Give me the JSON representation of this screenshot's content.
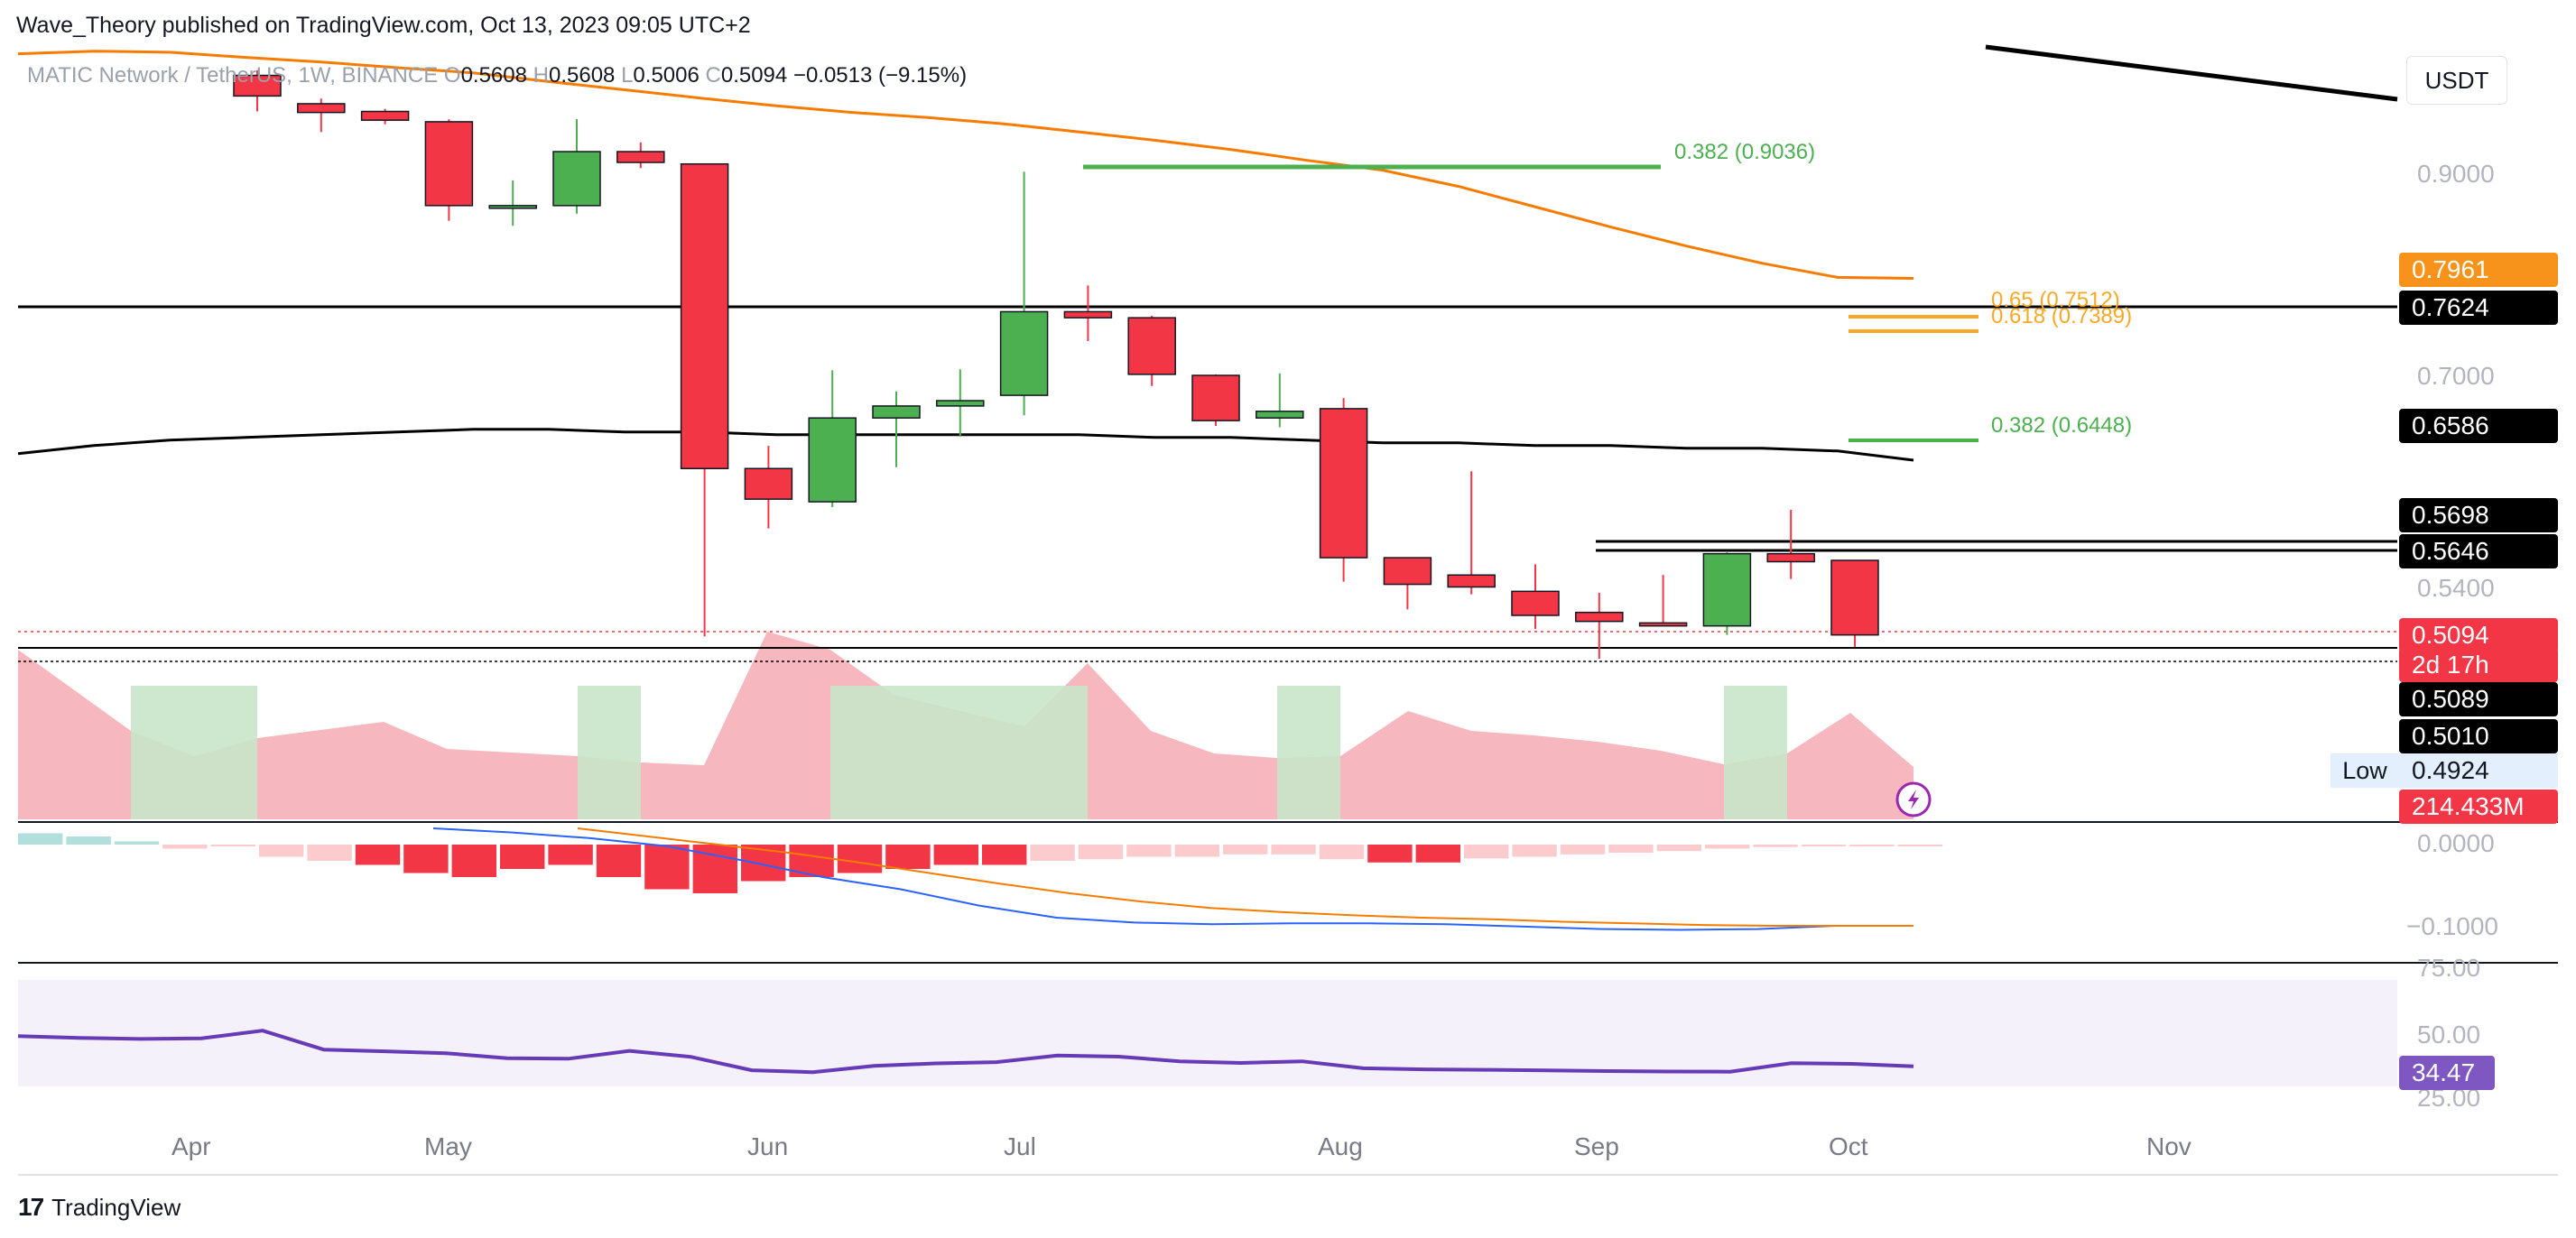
{
  "header": {
    "published": "Wave_Theory published on TradingView.com, Oct 13, 2023 09:05 UTC+2",
    "symbol": "MATIC Network / TetherUS, 1W, BINANCE",
    "o_label": "O",
    "o": "0.5608",
    "h_label": "H",
    "h": "0.5608",
    "l_label": "L",
    "l": "0.5006",
    "c_label": "C",
    "c": "0.5094",
    "chg": "−0.0513 (−9.15%)"
  },
  "currency_button": "USDT",
  "price_tags": {
    "ema_orange": "0.7961",
    "res_top": "0.7624",
    "ema_black": "0.6586",
    "res_a": "0.5698",
    "res_b": "0.5646",
    "last": "0.5094",
    "countdown": "2d 17h",
    "sup_a": "0.5089",
    "sup_b": "0.5010",
    "low_label": "Low",
    "low": "0.4924",
    "volume": "214.433M",
    "rsi": "34.47"
  },
  "fib_labels": {
    "f1": "0.382 (0.9036)",
    "f2a": "0.65 (0.7512)",
    "f2b": "0.618 (0.7389)",
    "f3": "0.382 (0.6448)"
  },
  "colors": {
    "up": "#4caf50",
    "down": "#f23645",
    "ema_orange": "#f57c00",
    "fib_green": "#4caf50",
    "fib_gold": "#f9a825",
    "rsi": "#673ab7",
    "macd_line": "#2962ff"
  },
  "brand": "TradingView",
  "chart_data": {
    "type": "candlestick",
    "pair": "MATIC/USDT",
    "timeframe": "1W",
    "y_axis_ticks": [
      "0.9000",
      "0.7000",
      "0.5400"
    ],
    "x_axis_ticks": [
      "Apr",
      "May",
      "Jun",
      "Jul",
      "Aug",
      "Sep",
      "Oct",
      "Nov"
    ],
    "candles": [
      {
        "o": 1.09,
        "h": 1.1,
        "l": 1.02,
        "c": 1.05
      },
      {
        "o": 1.035,
        "h": 1.045,
        "l": 0.98,
        "c": 1.018
      },
      {
        "o": 1.02,
        "h": 1.025,
        "l": 0.995,
        "c": 1.003
      },
      {
        "o": 1.0,
        "h": 1.005,
        "l": 0.853,
        "c": 0.868
      },
      {
        "o": 0.868,
        "h": 0.893,
        "l": 0.848,
        "c": 0.868
      },
      {
        "o": 0.868,
        "h": 1.005,
        "l": 0.86,
        "c": 0.942
      },
      {
        "o": 0.942,
        "h": 0.96,
        "l": 0.91,
        "c": 0.921
      },
      {
        "o": 0.918,
        "h": 0.918,
        "l": 0.508,
        "c": 0.63
      },
      {
        "o": 0.63,
        "h": 0.647,
        "l": 0.585,
        "c": 0.607
      },
      {
        "o": 0.605,
        "h": 0.705,
        "l": 0.601,
        "c": 0.668
      },
      {
        "o": 0.668,
        "h": 0.688,
        "l": 0.631,
        "c": 0.677
      },
      {
        "o": 0.677,
        "h": 0.706,
        "l": 0.654,
        "c": 0.681
      },
      {
        "o": 0.685,
        "h": 0.903,
        "l": 0.67,
        "c": 0.763
      },
      {
        "o": 0.763,
        "h": 0.789,
        "l": 0.734,
        "c": 0.757
      },
      {
        "o": 0.757,
        "h": 0.759,
        "l": 0.692,
        "c": 0.701
      },
      {
        "o": 0.7,
        "h": 0.701,
        "l": 0.662,
        "c": 0.666
      },
      {
        "o": 0.668,
        "h": 0.702,
        "l": 0.661,
        "c": 0.673
      },
      {
        "o": 0.675,
        "h": 0.683,
        "l": 0.545,
        "c": 0.563
      },
      {
        "o": 0.563,
        "h": 0.563,
        "l": 0.526,
        "c": 0.543
      },
      {
        "o": 0.55,
        "h": 0.628,
        "l": 0.536,
        "c": 0.541
      },
      {
        "o": 0.538,
        "h": 0.558,
        "l": 0.513,
        "c": 0.522
      },
      {
        "o": 0.524,
        "h": 0.537,
        "l": 0.493,
        "c": 0.518
      },
      {
        "o": 0.517,
        "h": 0.55,
        "l": 0.515,
        "c": 0.515
      },
      {
        "o": 0.515,
        "h": 0.567,
        "l": 0.509,
        "c": 0.566
      },
      {
        "o": 0.566,
        "h": 0.599,
        "l": 0.547,
        "c": 0.56
      },
      {
        "o": 0.561,
        "h": 0.561,
        "l": 0.501,
        "c": 0.509
      }
    ],
    "ema_orange": [
      1.132,
      1.137,
      1.135,
      1.125,
      1.116,
      1.105,
      1.095,
      1.078,
      1.062,
      1.046,
      1.031,
      1.018,
      1.008,
      0.996,
      0.98,
      0.964,
      0.946,
      0.925,
      0.906,
      0.887,
      0.867,
      0.847,
      0.828,
      0.811,
      0.797,
      0.796
    ],
    "ema_black": [
      0.661,
      0.664,
      0.666,
      0.667,
      0.668,
      0.669,
      0.67,
      0.67,
      0.669,
      0.669,
      0.668,
      0.668,
      0.668,
      0.668,
      0.668,
      0.667,
      0.667,
      0.666,
      0.665,
      0.665,
      0.664,
      0.664,
      0.663,
      0.663,
      0.662,
      0.6586
    ],
    "horizontal_levels": [
      0.7624,
      0.5698,
      0.5646,
      0.5089,
      0.501
    ],
    "fib_levels": [
      0.9036,
      0.7512,
      0.7389,
      0.6448
    ],
    "rsi_bounds": [
      25,
      75
    ],
    "rsi_ticks": [
      "75.00",
      "50.00",
      "25.00"
    ],
    "rsi": [
      48.6,
      47.8,
      47.3,
      47.6,
      51.2,
      42.3,
      41.5,
      40.6,
      38.2,
      38.0,
      41.7,
      38.9,
      32.6,
      31.7,
      34.6,
      35.8,
      36.4,
      39.5,
      39.0,
      36.8,
      36.0,
      36.8,
      33.5,
      33.0,
      32.8,
      32.5,
      32.2,
      32.0,
      31.9,
      35.9,
      35.6,
      34.47
    ],
    "macd_ticks": [
      "0.0000",
      "−0.1000"
    ],
    "macd_hist": [
      0.014,
      0.01,
      0.004,
      -0.005,
      -0.002,
      -0.015,
      -0.02,
      -0.025,
      -0.035,
      -0.04,
      -0.03,
      -0.025,
      -0.04,
      -0.055,
      -0.06,
      -0.045,
      -0.04,
      -0.035,
      -0.03,
      -0.025,
      -0.025,
      -0.02,
      -0.018,
      -0.015,
      -0.015,
      -0.012,
      -0.012,
      -0.018,
      -0.022,
      -0.022,
      -0.017,
      -0.015,
      -0.012,
      -0.01,
      -0.008,
      -0.005,
      -0.003,
      -0.002,
      -0.002,
      -0.001
    ],
    "macd_line": [
      0.02,
      0.015,
      0.008,
      -0.002,
      -0.02,
      -0.04,
      -0.055,
      -0.075,
      -0.09,
      -0.096,
      -0.098,
      -0.097,
      -0.097,
      -0.098,
      -0.101,
      -0.104,
      -0.105,
      -0.104,
      -0.1,
      -0.1
    ],
    "macd_signal": [
      0.02,
      0.01,
      0.0,
      -0.01,
      -0.022,
      -0.035,
      -0.048,
      -0.06,
      -0.07,
      -0.078,
      -0.083,
      -0.087,
      -0.09,
      -0.092,
      -0.095,
      -0.097,
      -0.099,
      -0.1,
      -0.1,
      -0.1
    ]
  }
}
